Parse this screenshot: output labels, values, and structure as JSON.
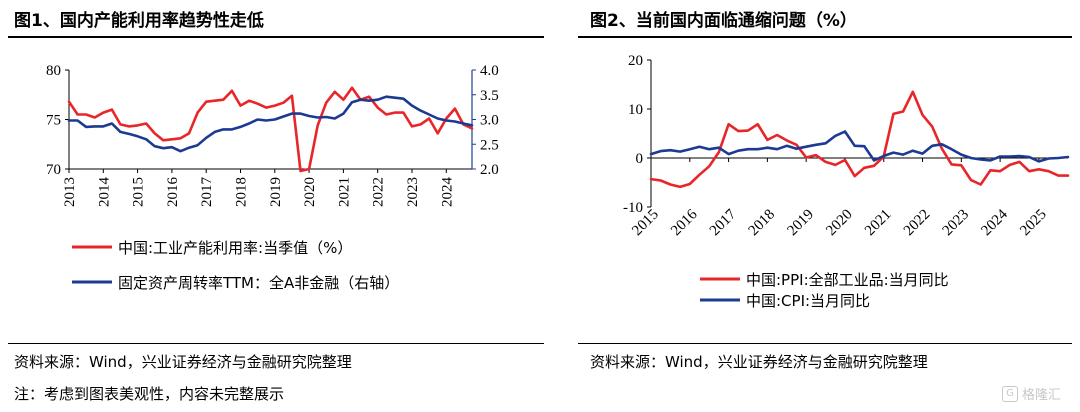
{
  "footer": {
    "source_left": "资料来源：Wind，兴业证券经济与金融研究院整理",
    "source_right": "资料来源：Wind，兴业证券经济与金融研究院整理",
    "note": "注：考虑到图表美观性，内容未完整展示",
    "watermark": "格隆汇"
  },
  "chart_data": [
    {
      "type": "line",
      "title": "图1、国内产能利用率趋势性走低",
      "x_tick_labels": [
        "2013",
        "2014",
        "2015",
        "2016",
        "2017",
        "2018",
        "2019",
        "2020",
        "2021",
        "2022",
        "2023",
        "2024"
      ],
      "y_left": {
        "ticks": [
          "80",
          "75",
          "70"
        ],
        "ylim": [
          70,
          80
        ],
        "color": "#000000"
      },
      "y_right": {
        "ticks": [
          "4.0",
          "3.5",
          "3.0",
          "2.5",
          "2.0"
        ],
        "ylim": [
          2.0,
          4.0
        ],
        "color": "#1f3f99"
      },
      "xlim": [
        2013.0,
        2024.75
      ],
      "series": [
        {
          "name": "中国:工业产能利用率:当季值（%）",
          "axis": "left",
          "color": "#e8262a",
          "points": [
            [
              2013.0,
              76.8
            ],
            [
              2013.25,
              75.5
            ],
            [
              2013.5,
              75.5
            ],
            [
              2013.75,
              75.2
            ],
            [
              2014.0,
              75.7
            ],
            [
              2014.25,
              76.0
            ],
            [
              2014.5,
              74.5
            ],
            [
              2014.75,
              74.3
            ],
            [
              2015.0,
              74.4
            ],
            [
              2015.25,
              74.6
            ],
            [
              2015.5,
              73.6
            ],
            [
              2015.75,
              72.9
            ],
            [
              2016.0,
              73.0
            ],
            [
              2016.25,
              73.1
            ],
            [
              2016.5,
              73.6
            ],
            [
              2016.75,
              75.7
            ],
            [
              2017.0,
              76.8
            ],
            [
              2017.25,
              76.9
            ],
            [
              2017.5,
              77.0
            ],
            [
              2017.75,
              77.9
            ],
            [
              2018.0,
              76.4
            ],
            [
              2018.25,
              76.9
            ],
            [
              2018.5,
              76.6
            ],
            [
              2018.75,
              76.2
            ],
            [
              2019.0,
              76.4
            ],
            [
              2019.25,
              76.7
            ],
            [
              2019.5,
              77.4
            ],
            [
              2019.75,
              69.8
            ],
            [
              2020.0,
              70.0
            ],
            [
              2020.25,
              74.4
            ],
            [
              2020.5,
              76.7
            ],
            [
              2020.75,
              77.8
            ],
            [
              2021.0,
              77.0
            ],
            [
              2021.25,
              78.2
            ],
            [
              2021.5,
              77.0
            ],
            [
              2021.75,
              77.3
            ],
            [
              2022.0,
              76.2
            ],
            [
              2022.25,
              75.5
            ],
            [
              2022.5,
              75.7
            ],
            [
              2022.75,
              75.7
            ],
            [
              2023.0,
              74.3
            ],
            [
              2023.25,
              74.5
            ],
            [
              2023.5,
              75.1
            ],
            [
              2023.75,
              73.6
            ],
            [
              2024.0,
              75.1
            ],
            [
              2024.25,
              76.1
            ],
            [
              2024.5,
              74.5
            ],
            [
              2024.75,
              74.1
            ]
          ]
        },
        {
          "name": "固定资产周转率TTM：全A非金融（右轴）",
          "axis": "right",
          "color": "#1c3a92",
          "points": [
            [
              2013.0,
              2.98
            ],
            [
              2013.25,
              2.98
            ],
            [
              2013.5,
              2.85
            ],
            [
              2013.75,
              2.86
            ],
            [
              2014.0,
              2.86
            ],
            [
              2014.25,
              2.92
            ],
            [
              2014.5,
              2.75
            ],
            [
              2014.75,
              2.71
            ],
            [
              2015.0,
              2.66
            ],
            [
              2015.25,
              2.6
            ],
            [
              2015.5,
              2.46
            ],
            [
              2015.75,
              2.42
            ],
            [
              2016.0,
              2.44
            ],
            [
              2016.25,
              2.36
            ],
            [
              2016.5,
              2.43
            ],
            [
              2016.75,
              2.48
            ],
            [
              2017.0,
              2.63
            ],
            [
              2017.25,
              2.75
            ],
            [
              2017.5,
              2.8
            ],
            [
              2017.75,
              2.8
            ],
            [
              2018.0,
              2.85
            ],
            [
              2018.25,
              2.92
            ],
            [
              2018.5,
              3.0
            ],
            [
              2018.75,
              2.98
            ],
            [
              2019.0,
              3.0
            ],
            [
              2019.25,
              3.06
            ],
            [
              2019.5,
              3.12
            ],
            [
              2019.75,
              3.12
            ],
            [
              2020.0,
              3.07
            ],
            [
              2020.25,
              3.04
            ],
            [
              2020.5,
              3.05
            ],
            [
              2020.75,
              3.02
            ],
            [
              2021.0,
              3.12
            ],
            [
              2021.25,
              3.35
            ],
            [
              2021.5,
              3.4
            ],
            [
              2021.75,
              3.38
            ],
            [
              2022.0,
              3.4
            ],
            [
              2022.25,
              3.46
            ],
            [
              2022.5,
              3.44
            ],
            [
              2022.75,
              3.42
            ],
            [
              2023.0,
              3.28
            ],
            [
              2023.25,
              3.18
            ],
            [
              2023.5,
              3.1
            ],
            [
              2023.75,
              3.02
            ],
            [
              2024.0,
              2.98
            ],
            [
              2024.25,
              2.96
            ],
            [
              2024.5,
              2.92
            ],
            [
              2024.75,
              2.88
            ]
          ]
        }
      ]
    },
    {
      "type": "line",
      "title": "图2、当前国内面临通缩问题（%）",
      "x_tick_labels": [
        "2015",
        "2016",
        "2017",
        "2018",
        "2019",
        "2020",
        "2021",
        "2022",
        "2023",
        "2024",
        "2025"
      ],
      "y_left": {
        "ticks": [
          "20",
          "10",
          "0",
          "-10"
        ],
        "ylim": [
          -10,
          20
        ]
      },
      "xlim": [
        2015.0,
        2025.75
      ],
      "series": [
        {
          "name": "中国:PPI:全部工业品:当月同比",
          "color": "#e8262a",
          "points": [
            [
              2015.0,
              -4.3
            ],
            [
              2015.25,
              -4.6
            ],
            [
              2015.5,
              -5.4
            ],
            [
              2015.75,
              -5.9
            ],
            [
              2016.0,
              -5.3
            ],
            [
              2016.25,
              -3.4
            ],
            [
              2016.5,
              -1.7
            ],
            [
              2016.75,
              1.2
            ],
            [
              2017.0,
              6.9
            ],
            [
              2017.25,
              5.5
            ],
            [
              2017.5,
              5.6
            ],
            [
              2017.75,
              6.9
            ],
            [
              2018.0,
              3.7
            ],
            [
              2018.25,
              4.7
            ],
            [
              2018.5,
              3.6
            ],
            [
              2018.75,
              2.7
            ],
            [
              2019.0,
              0.1
            ],
            [
              2019.25,
              0.6
            ],
            [
              2019.5,
              -0.8
            ],
            [
              2019.75,
              -1.4
            ],
            [
              2020.0,
              -0.4
            ],
            [
              2020.25,
              -3.7
            ],
            [
              2020.5,
              -2.0
            ],
            [
              2020.75,
              -1.6
            ],
            [
              2021.0,
              0.3
            ],
            [
              2021.25,
              9.0
            ],
            [
              2021.5,
              9.5
            ],
            [
              2021.75,
              13.5
            ],
            [
              2022.0,
              8.8
            ],
            [
              2022.25,
              6.4
            ],
            [
              2022.5,
              1.9
            ],
            [
              2022.75,
              -1.3
            ],
            [
              2023.0,
              -1.5
            ],
            [
              2023.25,
              -4.5
            ],
            [
              2023.5,
              -5.4
            ],
            [
              2023.75,
              -2.5
            ],
            [
              2024.0,
              -2.7
            ],
            [
              2024.25,
              -1.4
            ],
            [
              2024.5,
              -0.8
            ],
            [
              2024.75,
              -2.7
            ],
            [
              2025.0,
              -2.3
            ],
            [
              2025.25,
              -2.7
            ],
            [
              2025.5,
              -3.6
            ],
            [
              2025.75,
              -3.6
            ]
          ]
        },
        {
          "name": "中国:CPI:当月同比",
          "color": "#1c3a92",
          "points": [
            [
              2015.0,
              0.8
            ],
            [
              2015.25,
              1.4
            ],
            [
              2015.5,
              1.6
            ],
            [
              2015.75,
              1.3
            ],
            [
              2016.0,
              1.8
            ],
            [
              2016.25,
              2.3
            ],
            [
              2016.5,
              1.8
            ],
            [
              2016.75,
              2.1
            ],
            [
              2017.0,
              0.8
            ],
            [
              2017.25,
              1.5
            ],
            [
              2017.5,
              1.8
            ],
            [
              2017.75,
              1.8
            ],
            [
              2018.0,
              2.1
            ],
            [
              2018.25,
              1.8
            ],
            [
              2018.5,
              2.5
            ],
            [
              2018.75,
              1.9
            ],
            [
              2019.0,
              2.3
            ],
            [
              2019.25,
              2.7
            ],
            [
              2019.5,
              3.0
            ],
            [
              2019.75,
              4.5
            ],
            [
              2020.0,
              5.4
            ],
            [
              2020.25,
              2.5
            ],
            [
              2020.5,
              2.4
            ],
            [
              2020.75,
              -0.5
            ],
            [
              2021.0,
              0.4
            ],
            [
              2021.25,
              1.1
            ],
            [
              2021.5,
              0.7
            ],
            [
              2021.75,
              1.5
            ],
            [
              2022.0,
              0.9
            ],
            [
              2022.25,
              2.5
            ],
            [
              2022.5,
              2.8
            ],
            [
              2022.75,
              1.8
            ],
            [
              2023.0,
              0.7
            ],
            [
              2023.25,
              0.0
            ],
            [
              2023.5,
              -0.3
            ],
            [
              2023.75,
              -0.5
            ],
            [
              2024.0,
              0.3
            ],
            [
              2024.25,
              0.3
            ],
            [
              2024.5,
              0.4
            ],
            [
              2024.75,
              0.2
            ],
            [
              2025.0,
              -0.7
            ],
            [
              2025.25,
              -0.1
            ],
            [
              2025.5,
              0.0
            ],
            [
              2025.75,
              0.2
            ]
          ]
        }
      ]
    }
  ]
}
